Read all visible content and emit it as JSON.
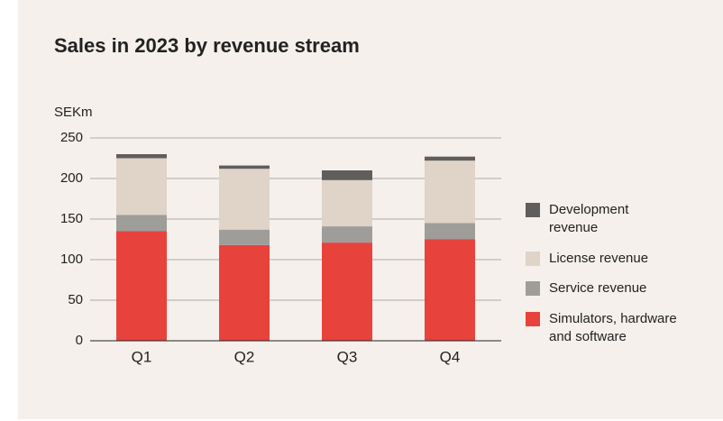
{
  "chart_data": {
    "type": "stacked_bar",
    "title": "Sales in 2023 by revenue stream",
    "y_label": "SEKm",
    "categories": [
      "Q1",
      "Q2",
      "Q3",
      "Q4"
    ],
    "series": [
      {
        "name": "Simulators, hardware and software",
        "color": "#e8423c",
        "values": [
          135,
          118,
          121,
          125
        ]
      },
      {
        "name": "Service revenue",
        "color": "#9f9d99",
        "values": [
          20,
          19,
          20,
          20
        ]
      },
      {
        "name": "License revenue",
        "color": "#e0d3c7",
        "values": [
          70,
          75,
          57,
          77
        ]
      },
      {
        "name": "Development revenue",
        "color": "#5f5e5c",
        "values": [
          5,
          4,
          12,
          5
        ]
      }
    ],
    "ylim": [
      0,
      250
    ],
    "yticks": [
      0,
      50,
      100,
      150,
      200,
      250
    ],
    "grid": true,
    "legend": "right"
  }
}
